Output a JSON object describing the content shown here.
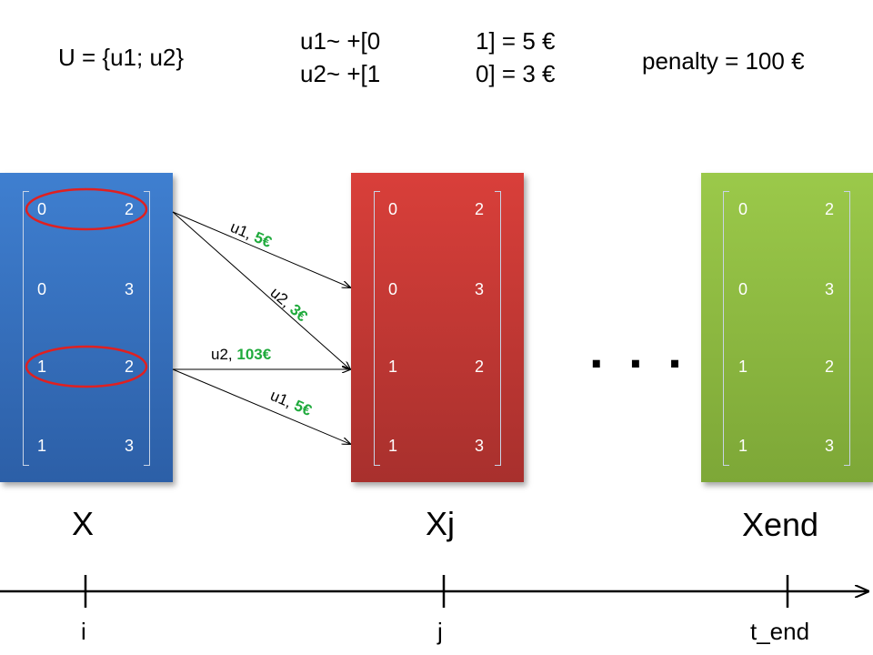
{
  "header": {
    "set_def": "U = {u1; u2}",
    "u1_vec": "u1~ +[0",
    "u1_rhs": "1] = 5 €",
    "u2_vec": "u2~ +[1",
    "u2_rhs": "0] = 3 €",
    "penalty": "penalty = 100 €"
  },
  "states": [
    {
      "label": "X",
      "color": "#3070c0",
      "rows": [
        [
          "0",
          "2"
        ],
        [
          "0",
          "3"
        ],
        [
          "1",
          "2"
        ],
        [
          "1",
          "3"
        ]
      ]
    },
    {
      "label": "Xj",
      "color": "#c0392b",
      "rows": [
        [
          "0",
          "2"
        ],
        [
          "0",
          "3"
        ],
        [
          "1",
          "2"
        ],
        [
          "1",
          "3"
        ]
      ]
    },
    {
      "label": "Xend",
      "color": "#8bbd3f",
      "rows": [
        [
          "0",
          "2"
        ],
        [
          "0",
          "3"
        ],
        [
          "1",
          "2"
        ],
        [
          "1",
          "3"
        ]
      ]
    }
  ],
  "ellipsis": ". . .",
  "transitions": [
    {
      "action": "u1,",
      "cost": "5€"
    },
    {
      "action": "u2,",
      "cost": "3€"
    },
    {
      "action": "u2,",
      "cost": "103€"
    },
    {
      "action": "u1,",
      "cost": "5€"
    }
  ],
  "timeline": {
    "ticks": [
      "i",
      "j",
      "t_end"
    ]
  },
  "colors": {
    "cost_text": "#1faa3c",
    "highlight": "#e02020"
  }
}
